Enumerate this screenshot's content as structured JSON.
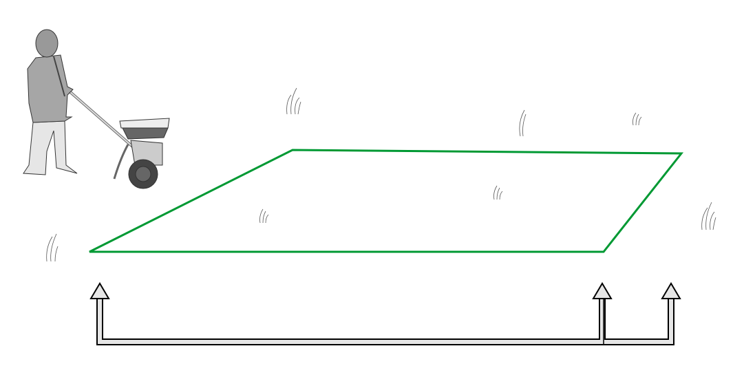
{
  "colors": {
    "field_outline": "#009933",
    "arrow_fill": "#e6e6e6",
    "arrow_stroke": "#000000",
    "figure_gray": "#a6a6a6"
  },
  "icons": [
    "person-with-spreader-icon",
    "grass-tuft-icon",
    "up-arrow-icon"
  ]
}
